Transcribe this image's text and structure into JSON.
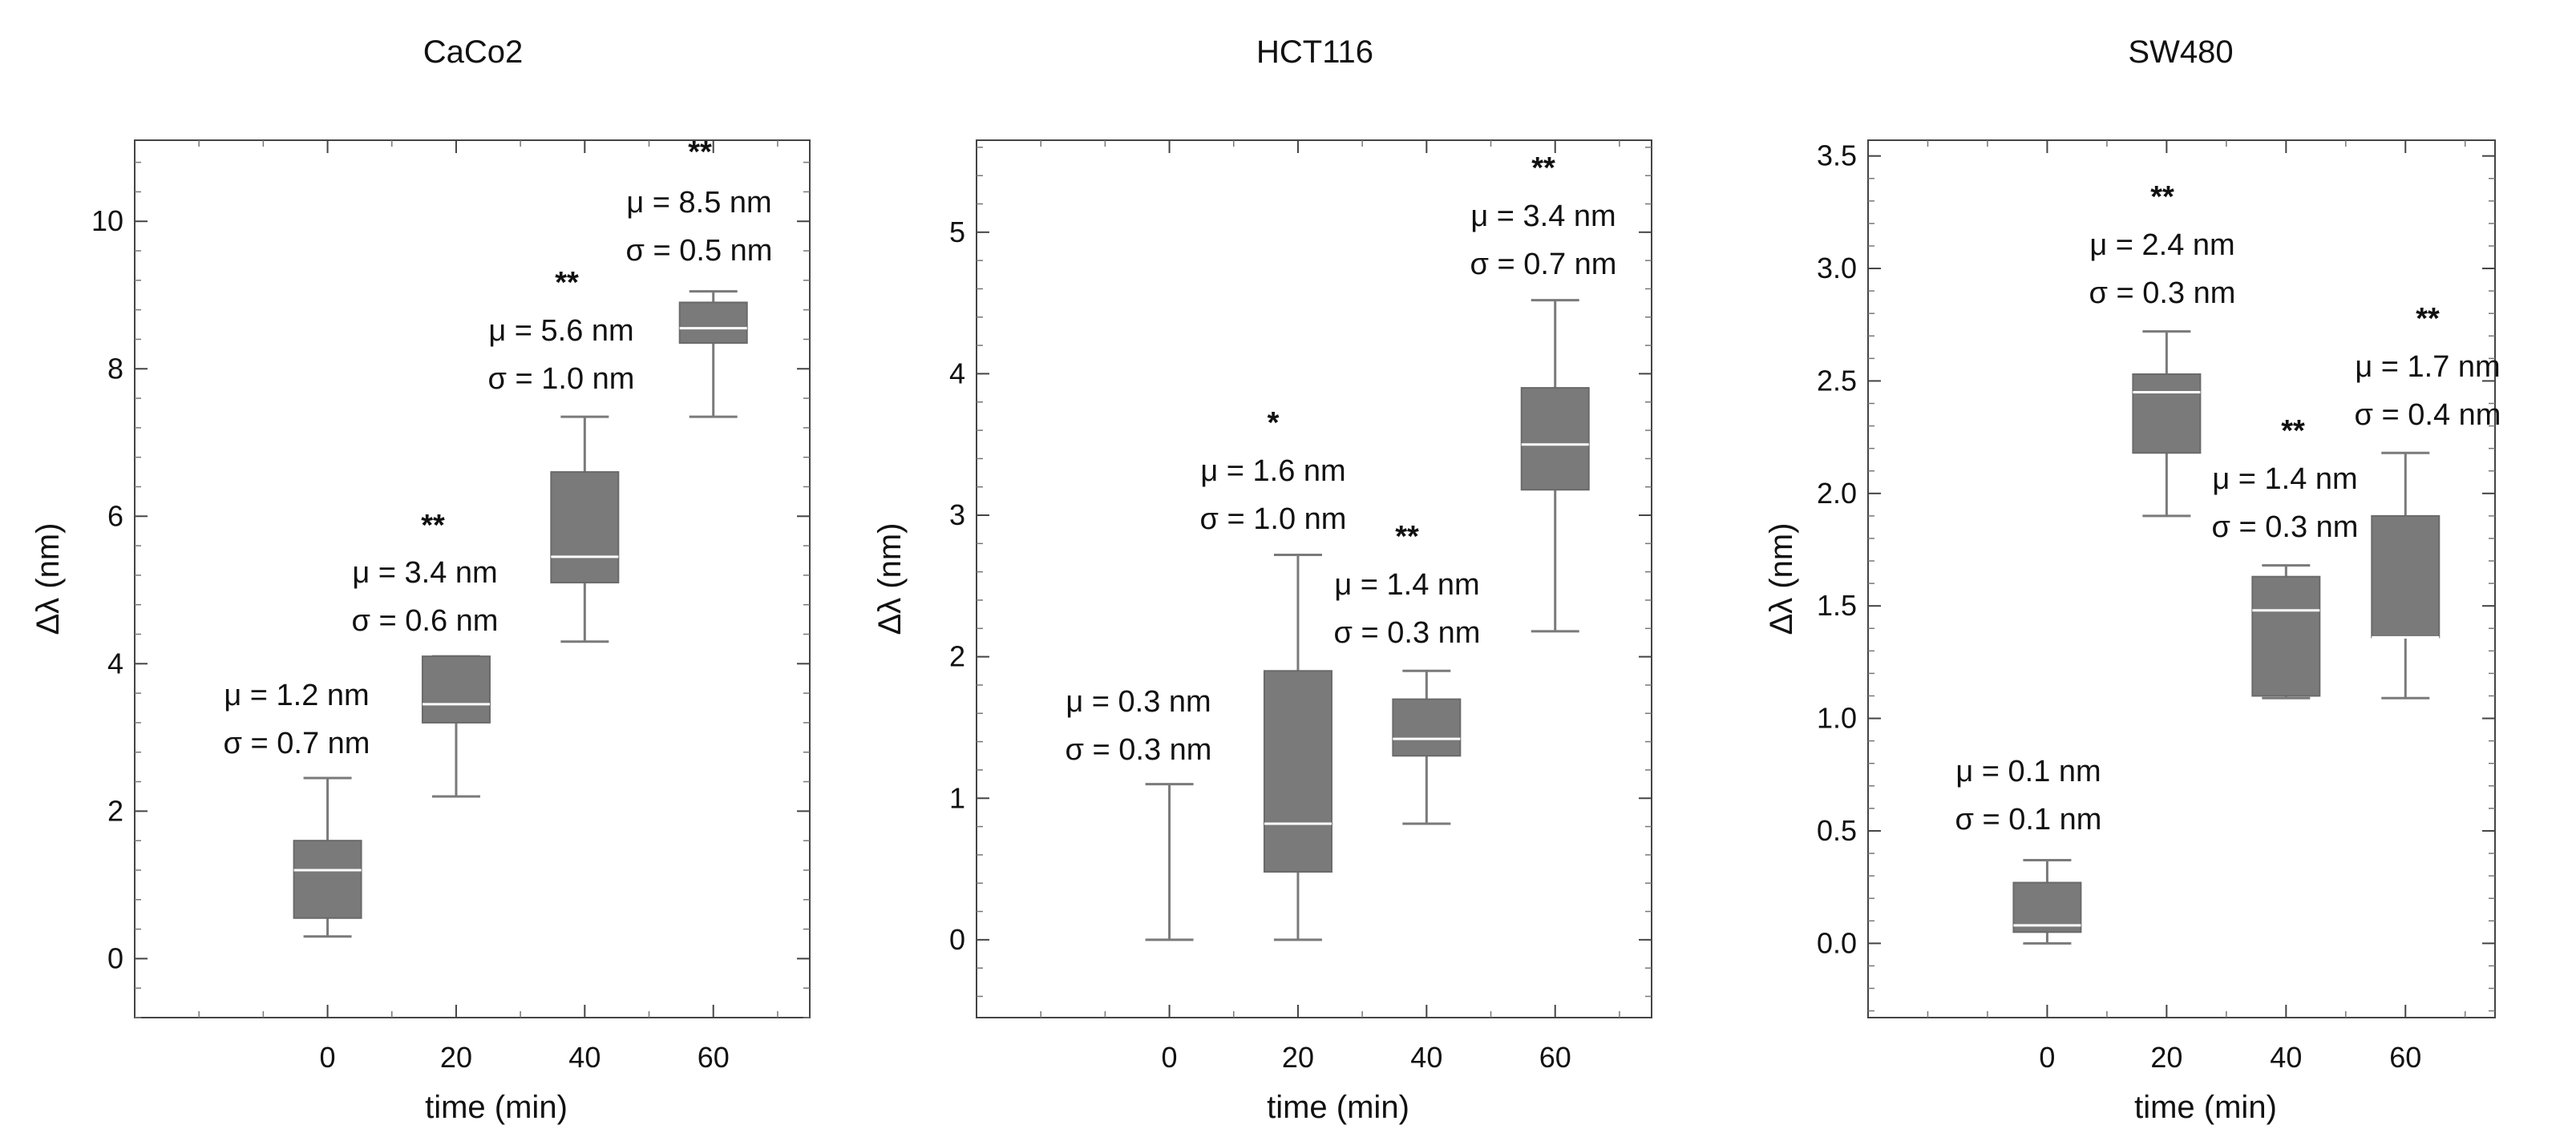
{
  "chart_data": [
    {
      "type": "box",
      "title": "CaCo2",
      "xlabel": "time (min)",
      "ylabel": "Δλ (nm)",
      "xlim": [
        -30,
        75
      ],
      "ylim": [
        -0.8,
        11.1
      ],
      "xticks": [
        0,
        20,
        40,
        60
      ],
      "xtick_labels": [
        "0",
        "20",
        "40",
        "60"
      ],
      "yticks": [
        0,
        2,
        4,
        6,
        8,
        10
      ],
      "ytick_labels": [
        "0",
        "2",
        "4",
        "6",
        "8",
        "10"
      ],
      "boxes": [
        {
          "x": 0,
          "min": 0.3,
          "q1": 0.55,
          "median": 1.2,
          "q3": 1.6,
          "max": 2.45,
          "mean_label": "μ = 1.2 nm",
          "sd_label": "σ = 0.7 nm",
          "significance": ""
        },
        {
          "x": 20,
          "min": 2.2,
          "q1": 3.2,
          "median": 3.45,
          "q3": 4.1,
          "max": 4.1,
          "mean_label": "μ = 3.4 nm",
          "sd_label": "σ = 0.6 nm",
          "significance": "**"
        },
        {
          "x": 40,
          "min": 4.3,
          "q1": 5.1,
          "median": 5.45,
          "q3": 6.6,
          "max": 7.35,
          "mean_label": "μ = 5.6 nm",
          "sd_label": "σ = 1.0 nm",
          "significance": "**"
        },
        {
          "x": 60,
          "min": 7.35,
          "q1": 8.35,
          "median": 8.55,
          "q3": 8.9,
          "max": 9.05,
          "mean_label": "μ = 8.5 nm",
          "sd_label": "σ = 0.5 nm",
          "significance": "**"
        }
      ]
    },
    {
      "type": "box",
      "title": "HCT116",
      "xlabel": "time (min)",
      "ylabel": "Δλ (nm)",
      "xlim": [
        -30,
        75
      ],
      "ylim": [
        -0.55,
        5.65
      ],
      "xticks": [
        0,
        20,
        40,
        60
      ],
      "xtick_labels": [
        "0",
        "20",
        "40",
        "60"
      ],
      "yticks": [
        0,
        1,
        2,
        3,
        4,
        5
      ],
      "ytick_labels": [
        "0",
        "1",
        "2",
        "3",
        "4",
        "5"
      ],
      "boxes": [
        {
          "x": 0,
          "min": 0.0,
          "q1": 0.0,
          "median": 0.0,
          "q3": 0.0,
          "max": 1.1,
          "mean_label": "μ = 0.3 nm",
          "sd_label": "σ = 0.3 nm",
          "significance": ""
        },
        {
          "x": 20,
          "min": 0.0,
          "q1": 0.48,
          "median": 0.82,
          "q3": 1.9,
          "max": 2.72,
          "mean_label": "μ = 1.6 nm",
          "sd_label": "σ = 1.0 nm",
          "significance": "*"
        },
        {
          "x": 40,
          "min": 0.82,
          "q1": 1.3,
          "median": 1.42,
          "q3": 1.7,
          "max": 1.9,
          "mean_label": "μ = 1.4 nm",
          "sd_label": "σ = 0.3 nm",
          "significance": "**"
        },
        {
          "x": 60,
          "min": 2.18,
          "q1": 3.18,
          "median": 3.5,
          "q3": 3.9,
          "max": 4.52,
          "mean_label": "μ = 3.4 nm",
          "sd_label": "σ = 0.7 nm",
          "significance": "**"
        }
      ]
    },
    {
      "type": "box",
      "title": "SW480",
      "xlabel": "time (min)",
      "ylabel": "Δλ (nm)",
      "xlim": [
        -30,
        75
      ],
      "ylim": [
        -0.33,
        3.57
      ],
      "xticks": [
        0,
        20,
        40,
        60
      ],
      "xtick_labels": [
        "0",
        "20",
        "40",
        "60"
      ],
      "yticks": [
        0.0,
        0.5,
        1.0,
        1.5,
        2.0,
        2.5,
        3.0,
        3.5
      ],
      "ytick_labels": [
        "0.0",
        "0.5",
        "1.0",
        "1.5",
        "2.0",
        "2.5",
        "3.0",
        "3.5"
      ],
      "boxes": [
        {
          "x": 0,
          "min": 0.0,
          "q1": 0.05,
          "median": 0.08,
          "q3": 0.27,
          "max": 0.37,
          "mean_label": "μ = 0.1 nm",
          "sd_label": "σ = 0.1 nm",
          "significance": ""
        },
        {
          "x": 20,
          "min": 1.9,
          "q1": 2.18,
          "median": 2.45,
          "q3": 2.53,
          "max": 2.72,
          "mean_label": "μ = 2.4 nm",
          "sd_label": "σ = 0.3 nm",
          "significance": "**"
        },
        {
          "x": 40,
          "min": 1.09,
          "q1": 1.1,
          "median": 1.48,
          "q3": 1.63,
          "max": 1.68,
          "mean_label": "μ = 1.4 nm",
          "sd_label": "σ = 0.3 nm",
          "significance": "**"
        },
        {
          "x": 60,
          "min": 1.09,
          "q1": 1.36,
          "median": 1.36,
          "q3": 1.9,
          "max": 2.18,
          "mean_label": "μ = 1.7 nm",
          "sd_label": "σ = 0.4 nm",
          "significance": "**"
        }
      ]
    }
  ]
}
